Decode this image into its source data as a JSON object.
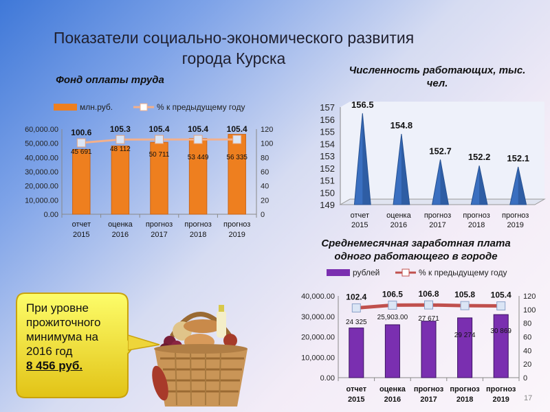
{
  "title": [
    "Показатели социально-экономического развития",
    "города Курска"
  ],
  "callout": {
    "lines": [
      "При уровне",
      "прожиточного",
      "минимума на",
      "2016 год"
    ],
    "amount": "8 456 руб."
  },
  "page_number": "17",
  "chart_data": [
    {
      "type": "bar",
      "title": "Фонд оплаты труда",
      "categories": [
        [
          "отчет",
          "2015"
        ],
        [
          "оценка",
          "2016"
        ],
        [
          "прогноз",
          "2017"
        ],
        [
          "прогноз",
          "2018"
        ],
        [
          "прогноз",
          "2019"
        ]
      ],
      "series": [
        {
          "name": "млн.руб.",
          "values": [
            45691,
            48112,
            50711,
            53449,
            56335
          ],
          "value_labels": [
            "45 691",
            "48 112",
            "50 711",
            "53 449",
            "56 335"
          ],
          "color": "#ee7f1f"
        },
        {
          "name": "% к предыдущему году",
          "type": "line",
          "axis": "right",
          "values": [
            100.6,
            105.3,
            105.4,
            105.4,
            105.4
          ],
          "value_labels": [
            "100.6",
            "105.3",
            "105.4",
            "105.4",
            "105.4"
          ],
          "color": "#f4b08a"
        }
      ],
      "ylim": [
        0,
        60000
      ],
      "yticks": [
        "0.00",
        "10,000.00",
        "20,000.00",
        "30,000.00",
        "40,000.00",
        "50,000.00",
        "60,000.00"
      ],
      "y2lim": [
        0,
        120
      ],
      "y2ticks": [
        "0",
        "20",
        "40",
        "60",
        "80",
        "100",
        "120"
      ]
    },
    {
      "type": "cone",
      "title": [
        "Численность работающих, тыс.",
        "чел."
      ],
      "categories": [
        [
          "отчет",
          "2015"
        ],
        [
          "оценка",
          "2016"
        ],
        [
          "прогноз",
          "2017"
        ],
        [
          "прогноз",
          "2018"
        ],
        [
          "прогноз",
          "2019"
        ]
      ],
      "values": [
        156.5,
        154.8,
        152.7,
        152.2,
        152.1
      ],
      "value_labels": [
        "156.5",
        "154.8",
        "152.7",
        "152.2",
        "152.1"
      ],
      "ylim": [
        149,
        157
      ],
      "yticks": [
        "149",
        "150",
        "151",
        "152",
        "153",
        "154",
        "155",
        "156",
        "157"
      ],
      "color": "#3a6fc0"
    },
    {
      "type": "bar",
      "title": [
        "Среднемесячная заработная плата",
        "одного работающего в городе"
      ],
      "categories": [
        [
          "отчет",
          "2015"
        ],
        [
          "оценка",
          "2016"
        ],
        [
          "прогноз",
          "2017"
        ],
        [
          "прогноз",
          "2018"
        ],
        [
          "прогноз",
          "2019"
        ]
      ],
      "series": [
        {
          "name": "рублей",
          "values": [
            24325,
            25903,
            27671,
            29274,
            30869
          ],
          "value_labels": [
            "24 325",
            "25,903.00",
            "27 671",
            "29 274",
            "30 869"
          ],
          "color": "#7a2fb0"
        },
        {
          "name": "% к предыдущему году",
          "type": "line",
          "axis": "right",
          "values": [
            102.4,
            106.5,
            106.8,
            105.8,
            105.4
          ],
          "value_labels": [
            "102.4",
            "106.5",
            "106.8",
            "105.8",
            "105.4"
          ],
          "color": "#c0504d"
        }
      ],
      "ylim": [
        0,
        40000
      ],
      "yticks": [
        "0.00",
        "10,000.00",
        "20,000.00",
        "30,000.00",
        "40,000.00"
      ],
      "y2lim": [
        0,
        120
      ],
      "y2ticks": [
        "0",
        "20",
        "40",
        "60",
        "80",
        "100",
        "120"
      ]
    }
  ]
}
